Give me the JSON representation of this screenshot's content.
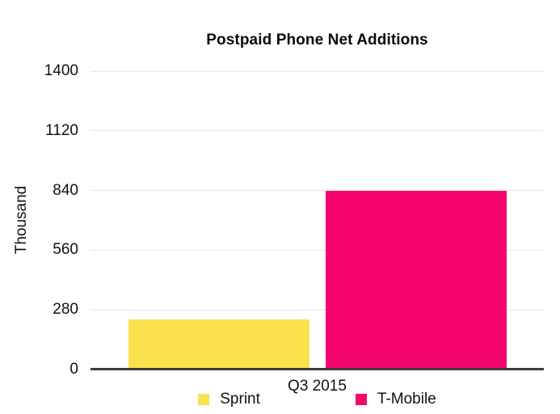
{
  "chart_data": {
    "type": "bar",
    "title": "Postpaid Phone Net Additions",
    "ylabel": "Thousand",
    "xlabel": "",
    "categories": [
      "Q3 2015"
    ],
    "series": [
      {
        "name": "Sprint",
        "values": [
          237
        ],
        "color": "#FBE14C"
      },
      {
        "name": "T-Mobile",
        "values": [
          840
        ],
        "color": "#F7056E"
      }
    ],
    "ylim": [
      0,
      1400
    ],
    "yticks": [
      0,
      280,
      560,
      840,
      1120,
      1400
    ],
    "grid": true,
    "legend_position": "bottom",
    "axis_color": "#3C3C3C",
    "gridline_color": "#E7E7E7"
  }
}
